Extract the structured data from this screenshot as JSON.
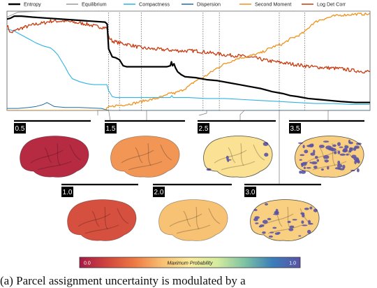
{
  "chart_data": {
    "type": "line",
    "title": "",
    "xlabel": "",
    "ylabel": "",
    "grid": false,
    "legend_placement": "top",
    "x_range": [
      0,
      100
    ],
    "y_range": [
      0,
      1
    ],
    "stage_markers": [
      {
        "label": "0.5",
        "x": 28
      },
      {
        "label": "1.0",
        "x": 31
      },
      {
        "label": "1.5",
        "x": 37
      },
      {
        "label": "2.0",
        "x": 54
      },
      {
        "label": "2.5",
        "x": 58.5
      },
      {
        "label": "3.0",
        "x": 75
      },
      {
        "label": "3.5",
        "x": 82
      }
    ],
    "series": [
      {
        "name": "Entropy",
        "color": "#000000",
        "width": 2.2,
        "points": [
          [
            0,
            0.92
          ],
          [
            1,
            0.93
          ],
          [
            2,
            0.95
          ],
          [
            4,
            0.95
          ],
          [
            7,
            0.94
          ],
          [
            11,
            0.93
          ],
          [
            15,
            0.92
          ],
          [
            19,
            0.91
          ],
          [
            23,
            0.9
          ],
          [
            27,
            0.89
          ],
          [
            27.6,
            0.87
          ],
          [
            28,
            0.62
          ],
          [
            29,
            0.54
          ],
          [
            30,
            0.53
          ],
          [
            31,
            0.51
          ],
          [
            32,
            0.45
          ],
          [
            33,
            0.44
          ],
          [
            36,
            0.44
          ],
          [
            40,
            0.44
          ],
          [
            44,
            0.44
          ],
          [
            45,
            0.45
          ],
          [
            45.3,
            0.49
          ],
          [
            45.6,
            0.45
          ],
          [
            46,
            0.47
          ],
          [
            46.4,
            0.43
          ],
          [
            47,
            0.39
          ],
          [
            48,
            0.36
          ],
          [
            49,
            0.34
          ],
          [
            52,
            0.33
          ],
          [
            55,
            0.31
          ],
          [
            58,
            0.3
          ],
          [
            61,
            0.28
          ],
          [
            64,
            0.26
          ],
          [
            67,
            0.24
          ],
          [
            70,
            0.22
          ],
          [
            73,
            0.19
          ],
          [
            76,
            0.17
          ],
          [
            78,
            0.15
          ],
          [
            80,
            0.14
          ],
          [
            83,
            0.12
          ],
          [
            86,
            0.11
          ],
          [
            89,
            0.1
          ],
          [
            92,
            0.09
          ],
          [
            96,
            0.08
          ],
          [
            100,
            0.08
          ]
        ]
      },
      {
        "name": "Equilibrium",
        "color": "#9a9a9a",
        "width": 1.0,
        "points": [
          [
            0,
            0.94
          ],
          [
            3,
            0.99
          ],
          [
            10,
            1.0
          ],
          [
            30,
            1.0
          ],
          [
            60,
            1.0
          ],
          [
            100,
            1.0
          ]
        ]
      },
      {
        "name": "Compactness",
        "color": "#2fb3e6",
        "width": 1.1,
        "points": [
          [
            0,
            0.82
          ],
          [
            2,
            0.8
          ],
          [
            4,
            0.76
          ],
          [
            6,
            0.72
          ],
          [
            8,
            0.68
          ],
          [
            10,
            0.65
          ],
          [
            12,
            0.63
          ],
          [
            13,
            0.6
          ],
          [
            14,
            0.56
          ],
          [
            15,
            0.5
          ],
          [
            16,
            0.44
          ],
          [
            17,
            0.37
          ],
          [
            18,
            0.32
          ],
          [
            20,
            0.29
          ],
          [
            22,
            0.27
          ],
          [
            24,
            0.26
          ],
          [
            26,
            0.26
          ],
          [
            27.5,
            0.26
          ],
          [
            28,
            0.2
          ],
          [
            29,
            0.14
          ],
          [
            30,
            0.13
          ],
          [
            33,
            0.13
          ],
          [
            40,
            0.13
          ],
          [
            44,
            0.13
          ],
          [
            45,
            0.13
          ],
          [
            45.4,
            0.15
          ],
          [
            45.8,
            0.13
          ],
          [
            47,
            0.13
          ],
          [
            50,
            0.13
          ],
          [
            55,
            0.12
          ],
          [
            60,
            0.12
          ],
          [
            65,
            0.11
          ],
          [
            70,
            0.1
          ],
          [
            75,
            0.09
          ],
          [
            80,
            0.08
          ],
          [
            85,
            0.07
          ],
          [
            90,
            0.07
          ],
          [
            95,
            0.06
          ],
          [
            100,
            0.06
          ]
        ]
      },
      {
        "name": "Dispersion",
        "color": "#1f6fa3",
        "width": 1.0,
        "points": [
          [
            0,
            0.02
          ],
          [
            3,
            0.02
          ],
          [
            6,
            0.03
          ],
          [
            8,
            0.04
          ],
          [
            10,
            0.06
          ],
          [
            11,
            0.08
          ],
          [
            12,
            0.06
          ],
          [
            13,
            0.04
          ],
          [
            16,
            0.03
          ],
          [
            20,
            0.03
          ],
          [
            26,
            0.02
          ],
          [
            28,
            0.0
          ],
          [
            100,
            0.0
          ]
        ]
      },
      {
        "name": "Second Moment",
        "color": "#f0921b",
        "width": 1.3,
        "points": [
          [
            0,
            0.0
          ],
          [
            27,
            0.0
          ],
          [
            28,
            0.03
          ],
          [
            30,
            0.05
          ],
          [
            33,
            0.06
          ],
          [
            36,
            0.08
          ],
          [
            38,
            0.1
          ],
          [
            40,
            0.11
          ],
          [
            42,
            0.13
          ],
          [
            44,
            0.15
          ],
          [
            45,
            0.18
          ],
          [
            46,
            0.17
          ],
          [
            48,
            0.2
          ],
          [
            50,
            0.24
          ],
          [
            52,
            0.3
          ],
          [
            54,
            0.33
          ],
          [
            56,
            0.38
          ],
          [
            58,
            0.43
          ],
          [
            60,
            0.47
          ],
          [
            62,
            0.5
          ],
          [
            64,
            0.53
          ],
          [
            66,
            0.54
          ],
          [
            68,
            0.56
          ],
          [
            70,
            0.58
          ],
          [
            72,
            0.62
          ],
          [
            74,
            0.65
          ],
          [
            76,
            0.67
          ],
          [
            78,
            0.72
          ],
          [
            80,
            0.75
          ],
          [
            82,
            0.79
          ],
          [
            84,
            0.87
          ],
          [
            86,
            0.91
          ],
          [
            88,
            0.93
          ],
          [
            90,
            0.95
          ],
          [
            92,
            0.96
          ],
          [
            96,
            0.97
          ],
          [
            100,
            0.97
          ]
        ]
      },
      {
        "name": "Log Det Corr",
        "color": "#c83a0f",
        "width": 1.3,
        "noisy": true,
        "noise": 0.018,
        "points": [
          [
            0,
            0.86
          ],
          [
            1,
            0.78
          ],
          [
            2,
            0.8
          ],
          [
            4,
            0.83
          ],
          [
            6,
            0.85
          ],
          [
            8,
            0.87
          ],
          [
            10,
            0.88
          ],
          [
            12,
            0.9
          ],
          [
            14,
            0.9
          ],
          [
            16,
            0.9
          ],
          [
            18,
            0.89
          ],
          [
            20,
            0.88
          ],
          [
            22,
            0.87
          ],
          [
            24,
            0.85
          ],
          [
            26,
            0.84
          ],
          [
            27.5,
            0.83
          ],
          [
            28,
            0.74
          ],
          [
            29,
            0.7
          ],
          [
            31,
            0.68
          ],
          [
            34,
            0.66
          ],
          [
            37,
            0.63
          ],
          [
            40,
            0.62
          ],
          [
            44,
            0.61
          ],
          [
            48,
            0.6
          ],
          [
            52,
            0.6
          ],
          [
            56,
            0.58
          ],
          [
            60,
            0.56
          ],
          [
            64,
            0.55
          ],
          [
            68,
            0.53
          ],
          [
            72,
            0.5
          ],
          [
            76,
            0.48
          ],
          [
            80,
            0.46
          ],
          [
            84,
            0.44
          ],
          [
            88,
            0.43
          ],
          [
            92,
            0.42
          ],
          [
            96,
            0.4
          ],
          [
            100,
            0.39
          ]
        ]
      }
    ],
    "colorbar": {
      "label": "Maximum Probability",
      "min_label": "0.0",
      "max_label": "1.0",
      "stops": [
        "#a61a45",
        "#d0453e",
        "#ee7a43",
        "#f8c072",
        "#fbeb9d",
        "#d5eb9e",
        "#7cc2a3",
        "#3a7dba",
        "#5a53a5"
      ]
    },
    "brain_panels": [
      {
        "stage": "0.5",
        "probability": 0.05
      },
      {
        "stage": "1.5",
        "probability": 0.3
      },
      {
        "stage": "2.5",
        "probability": 0.47
      },
      {
        "stage": "3.5",
        "probability": 0.95
      },
      {
        "stage": "1.0",
        "probability": 0.15
      },
      {
        "stage": "2.0",
        "probability": 0.38
      },
      {
        "stage": "3.0",
        "probability": 0.7
      }
    ]
  },
  "caption": "(a) Parcel assignment uncertainty is modulated by a"
}
